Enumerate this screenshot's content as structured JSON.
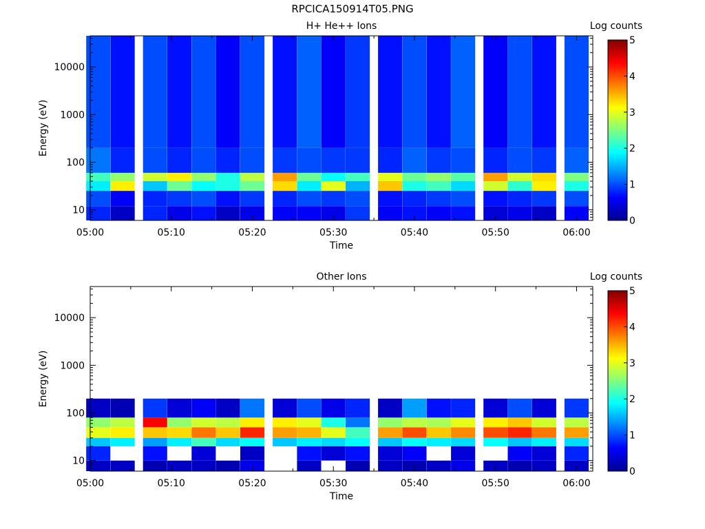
{
  "page": {
    "title": "RPCICA150914T05.PNG"
  },
  "colors": {
    "colormap": [
      "#00008f",
      "#0000ff",
      "#0080ff",
      "#00ffff",
      "#80ff80",
      "#ffff00",
      "#ff8000",
      "#ff0000",
      "#800000"
    ]
  },
  "chart_data": [
    {
      "type": "heatmap",
      "title": "H+ He++ Ions",
      "xlabel": "Time",
      "ylabel": "Energy (eV)",
      "colorbar_label": "Log counts",
      "colorbar_ticks": [
        "0",
        "1",
        "2",
        "3",
        "4",
        "5"
      ],
      "clim": [
        0,
        5
      ],
      "xlim": [
        "05:00",
        "06:02"
      ],
      "x_ticks": [
        "05:00",
        "05:10",
        "05:20",
        "05:30",
        "05:40",
        "05:50",
        "06:00"
      ],
      "y_scale": "log",
      "ylim": [
        6,
        45000
      ],
      "y_ticks": [
        "10",
        "100",
        "1000",
        "10000"
      ],
      "time_bins": [
        "05:01",
        "05:04",
        "05:08",
        "05:11",
        "05:14",
        "05:17",
        "05:20",
        "05:24",
        "05:27",
        "05:30",
        "05:33",
        "05:37",
        "05:40",
        "05:43",
        "05:46",
        "05:50",
        "05:53",
        "05:56",
        "06:00"
      ],
      "energy_bands": [
        {
          "range": [
            6,
            12
          ],
          "log_counts": [
            0.8,
            0.3,
            0.8,
            0.5,
            0.7,
            0.3,
            0.5,
            0.6,
            0.6,
            0.5,
            0.9,
            0.6,
            0.7,
            0.6,
            0.7,
            0.4,
            0.5,
            0.3,
            0.6
          ]
        },
        {
          "range": [
            12,
            25
          ],
          "log_counts": [
            1.0,
            0.6,
            0.8,
            0.9,
            1.0,
            0.7,
            0.9,
            0.8,
            1.0,
            0.9,
            1.0,
            0.7,
            0.8,
            0.9,
            1.0,
            0.7,
            0.8,
            0.9,
            1.0
          ]
        },
        {
          "range": [
            25,
            40
          ],
          "log_counts": [
            1.8,
            3.2,
            1.6,
            2.4,
            1.9,
            2.0,
            2.4,
            3.3,
            1.8,
            3.0,
            1.5,
            3.4,
            2.0,
            2.2,
            1.7,
            2.9,
            2.1,
            3.2,
            2.0
          ]
        },
        {
          "range": [
            40,
            60
          ],
          "log_counts": [
            2.2,
            2.6,
            2.9,
            3.2,
            2.6,
            2.0,
            2.8,
            3.6,
            2.4,
            1.9,
            2.2,
            3.0,
            2.4,
            2.6,
            2.3,
            3.6,
            2.9,
            3.3,
            2.5
          ]
        },
        {
          "range": [
            60,
            200
          ],
          "log_counts": [
            1.2,
            0.8,
            1.0,
            0.8,
            1.0,
            0.8,
            1.0,
            0.9,
            1.0,
            0.9,
            0.9,
            0.8,
            1.1,
            0.9,
            1.0,
            0.8,
            1.0,
            0.9,
            1.1
          ]
        },
        {
          "range": [
            200,
            45000
          ],
          "log_counts": [
            1.0,
            0.7,
            1.0,
            0.7,
            1.0,
            0.6,
            1.0,
            0.7,
            1.1,
            0.6,
            0.9,
            0.7,
            1.0,
            0.7,
            1.1,
            0.6,
            1.0,
            0.7,
            1.0
          ]
        }
      ]
    },
    {
      "type": "heatmap",
      "title": "Other Ions",
      "xlabel": "Time",
      "ylabel": "Energy (eV)",
      "colorbar_label": "Log counts",
      "colorbar_ticks": [
        "0",
        "1",
        "2",
        "3",
        "4",
        "5"
      ],
      "clim": [
        0,
        5
      ],
      "xlim": [
        "05:00",
        "06:02"
      ],
      "x_ticks": [
        "05:00",
        "05:10",
        "05:20",
        "05:30",
        "05:40",
        "05:50",
        "06:00"
      ],
      "y_scale": "log",
      "ylim": [
        6,
        45000
      ],
      "y_ticks": [
        "10",
        "100",
        "1000",
        "10000"
      ],
      "time_bins": [
        "05:01",
        "05:04",
        "05:08",
        "05:11",
        "05:14",
        "05:17",
        "05:20",
        "05:24",
        "05:27",
        "05:30",
        "05:33",
        "05:37",
        "05:40",
        "05:43",
        "05:46",
        "05:50",
        "05:53",
        "05:56",
        "06:00"
      ],
      "energy_bands": [
        {
          "range": [
            6,
            10
          ],
          "log_counts": [
            0.3,
            0.3,
            0.2,
            0.3,
            0.3,
            0.2,
            0.5,
            null,
            0.3,
            null,
            0.2,
            0.3,
            0.2,
            0.3,
            0.5,
            0.3,
            0.2,
            0.3,
            0.3
          ]
        },
        {
          "range": [
            10,
            20
          ],
          "log_counts": [
            0.8,
            null,
            0.7,
            null,
            0.4,
            null,
            0.3,
            null,
            0.7,
            0.4,
            0.7,
            0.4,
            0.6,
            null,
            0.4,
            null,
            0.6,
            0.4,
            0.8
          ]
        },
        {
          "range": [
            20,
            30
          ],
          "log_counts": [
            1.6,
            1.8,
            1.4,
            1.8,
            2.2,
            1.7,
            1.9,
            1.6,
            1.8,
            1.7,
            1.9,
            1.6,
            1.9,
            1.8,
            1.7,
            1.9,
            1.6,
            1.8,
            1.7
          ]
        },
        {
          "range": [
            30,
            50
          ],
          "log_counts": [
            3.0,
            3.2,
            3.4,
            3.3,
            3.8,
            3.4,
            4.2,
            3.6,
            3.5,
            3.0,
            2.2,
            3.6,
            4.0,
            3.4,
            3.7,
            4.0,
            4.2,
            3.8,
            3.6
          ]
        },
        {
          "range": [
            50,
            80
          ],
          "log_counts": [
            2.6,
            2.8,
            4.4,
            2.6,
            2.9,
            2.8,
            3.2,
            3.2,
            3.0,
            2.0,
            1.2,
            2.6,
            2.8,
            2.7,
            3.0,
            3.2,
            3.4,
            2.9,
            2.8
          ]
        },
        {
          "range": [
            80,
            200
          ],
          "log_counts": [
            0.3,
            0.2,
            0.9,
            0.4,
            0.6,
            0.3,
            1.2,
            0.4,
            1.0,
            0.5,
            0.8,
            0.3,
            1.4,
            0.7,
            0.8,
            0.4,
            1.0,
            0.4,
            0.9
          ]
        }
      ]
    }
  ]
}
